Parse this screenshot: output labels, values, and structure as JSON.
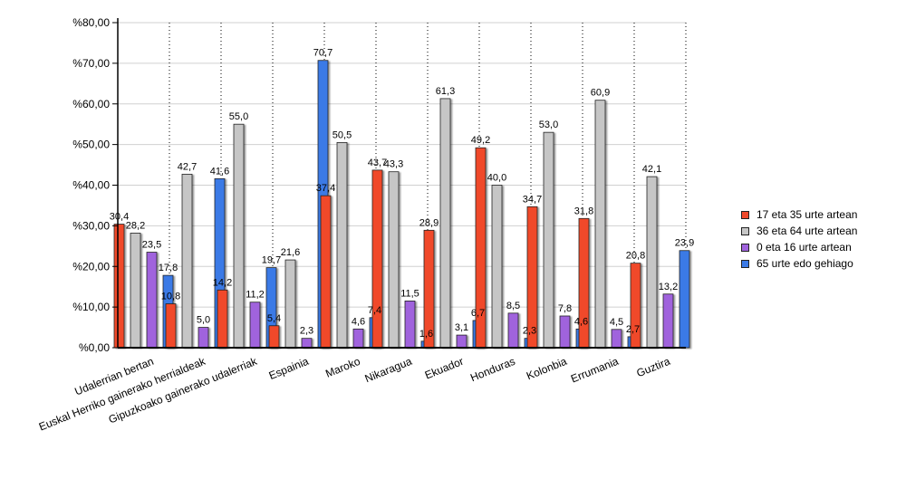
{
  "chart_data": {
    "type": "bar",
    "categories": [
      "Udalerrian bertan",
      "Euskal Herriko gainerako herrialdeak",
      "Gipuzkoako gainerako udalerriak",
      "Espainia",
      "Maroko",
      "Nikaragua",
      "Ekuador",
      "Honduras",
      "Kolonbia",
      "Errumania",
      "Guztira"
    ],
    "series": [
      {
        "name": "17 eta 35 urte artean",
        "color": "#f04a2c",
        "values": [
          30.4,
          10.8,
          14.2,
          5.4,
          37.4,
          43.7,
          28.9,
          49.2,
          34.7,
          31.8,
          20.8
        ]
      },
      {
        "name": "36 eta 64 urte artean",
        "color": "#c6c6c6",
        "values": [
          28.2,
          42.7,
          55.0,
          21.6,
          50.5,
          43.3,
          61.3,
          40.0,
          53.0,
          60.9,
          42.1
        ]
      },
      {
        "name": "0 eta 16 urte artean",
        "color": "#a063dd",
        "values": [
          23.5,
          5.0,
          11.2,
          2.3,
          4.6,
          11.5,
          3.1,
          8.5,
          7.8,
          4.5,
          13.2
        ]
      },
      {
        "name": "65 urte edo gehiago",
        "color": "#3b7ae6",
        "values": [
          17.8,
          41.6,
          19.7,
          70.7,
          7.4,
          1.6,
          6.7,
          2.3,
          4.6,
          2.7,
          23.9
        ]
      }
    ],
    "data_labels": [
      [
        "30,4",
        "10,8",
        "14,2",
        "5,4",
        "37,4",
        "43,7",
        "28,9",
        "49,2",
        "34,7",
        "31,8",
        "20,8"
      ],
      [
        "28,2",
        "42,7",
        "55,0",
        "21,6",
        "50,5",
        "43,3",
        "61,3",
        "40,0",
        "53,0",
        "60,9",
        "42,1"
      ],
      [
        "23,5",
        "5,0",
        "11,2",
        "2,3",
        "4,6",
        "11,5",
        "3,1",
        "8,5",
        "7,8",
        "4,5",
        "13,2"
      ],
      [
        "17,8",
        "41,6",
        "19,7",
        "70,7",
        "7,4",
        "1,6",
        "6,7",
        "2,3",
        "4,6",
        "2,7",
        "23,9"
      ]
    ],
    "y_ticks": [
      "%0,00",
      "%10,00",
      "%20,00",
      "%30,00",
      "%40,00",
      "%50,00",
      "%60,00",
      "%70,00",
      "%80,00"
    ],
    "ylim": [
      0,
      80
    ],
    "grid": true,
    "legend_position": "right",
    "title": "",
    "xlabel": "",
    "ylabel": ""
  }
}
